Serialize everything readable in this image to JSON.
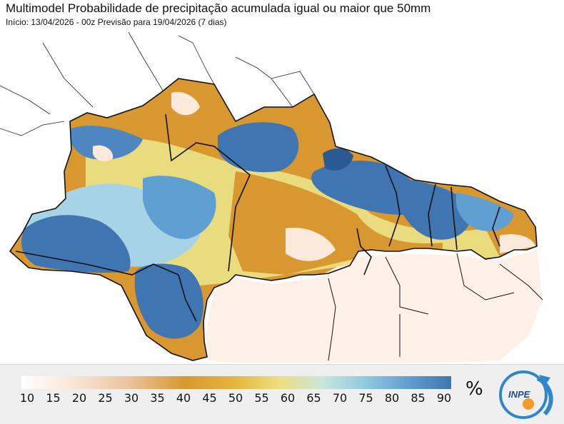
{
  "header": {
    "title": "Multimodel Probabilidade de precipitação acumulada igual ou maior que 50mm",
    "subtitle": "Início: 13/04/2026 - 00z  Previsão para 19/04/2026 (7 dias)"
  },
  "legend": {
    "ticks": [
      "10",
      "15",
      "20",
      "25",
      "30",
      "35",
      "40",
      "45",
      "50",
      "55",
      "60",
      "65",
      "70",
      "75",
      "80",
      "85",
      "90"
    ],
    "unit": "%",
    "colors": [
      "#ffffff",
      "#f9e6d6",
      "#ecc39c",
      "#d9972f",
      "#e6b63f",
      "#eede7d",
      "#c9e6dc",
      "#8fc9e0",
      "#5f9fd2",
      "#3f75b0"
    ]
  },
  "logo": {
    "text": "INPE"
  },
  "map": {
    "region": "Norte e Nordeste do Brasil",
    "colors": {
      "wet": "#3f75b0",
      "moist": "#6ba9d8",
      "mid": "#a6d4e6",
      "yellow": "#e9df84",
      "orange": "#d9972f",
      "dry": "#fbe9dc",
      "border": "#111111"
    }
  }
}
